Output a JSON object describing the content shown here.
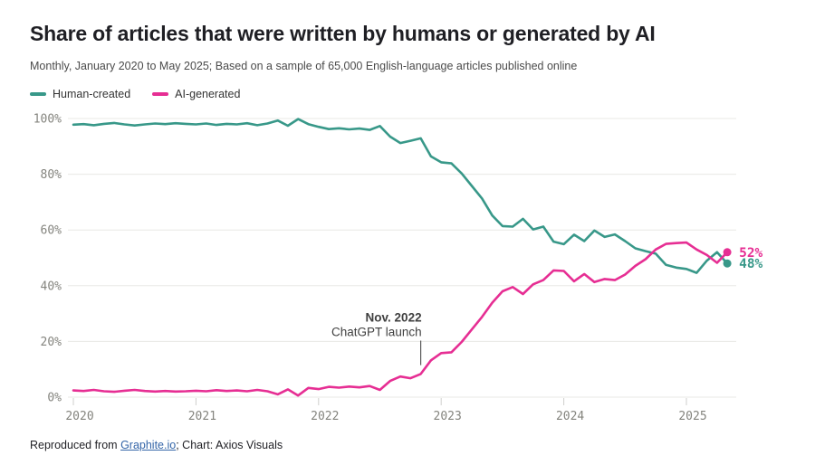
{
  "chart_data": {
    "type": "line",
    "title": "Share of articles that were written by humans or generated by AI",
    "subtitle": "Monthly, January 2020 to May 2025; Based on a sample of 65,000 English-language articles published online",
    "grid": "horizontal",
    "legend_position": "top-left",
    "ylim": [
      0,
      100
    ],
    "yticks": [
      {
        "value": 0,
        "label": "0%"
      },
      {
        "value": 20,
        "label": "20%"
      },
      {
        "value": 40,
        "label": "40%"
      },
      {
        "value": 60,
        "label": "60%"
      },
      {
        "value": 80,
        "label": "80%"
      },
      {
        "value": 100,
        "label": "100%"
      }
    ],
    "xticks": [
      {
        "index": 0,
        "label": "2020"
      },
      {
        "index": 12,
        "label": "2021"
      },
      {
        "index": 24,
        "label": "2022"
      },
      {
        "index": 36,
        "label": "2023"
      },
      {
        "index": 48,
        "label": "2024"
      },
      {
        "index": 60,
        "label": "2025"
      }
    ],
    "x": [
      "2020-01",
      "2020-02",
      "2020-03",
      "2020-04",
      "2020-05",
      "2020-06",
      "2020-07",
      "2020-08",
      "2020-09",
      "2020-10",
      "2020-11",
      "2020-12",
      "2021-01",
      "2021-02",
      "2021-03",
      "2021-04",
      "2021-05",
      "2021-06",
      "2021-07",
      "2021-08",
      "2021-09",
      "2021-10",
      "2021-11",
      "2021-12",
      "2022-01",
      "2022-02",
      "2022-03",
      "2022-04",
      "2022-05",
      "2022-06",
      "2022-07",
      "2022-08",
      "2022-09",
      "2022-10",
      "2022-11",
      "2022-12",
      "2023-01",
      "2023-02",
      "2023-03",
      "2023-04",
      "2023-05",
      "2023-06",
      "2023-07",
      "2023-08",
      "2023-09",
      "2023-10",
      "2023-11",
      "2023-12",
      "2024-01",
      "2024-02",
      "2024-03",
      "2024-04",
      "2024-05",
      "2024-06",
      "2024-07",
      "2024-08",
      "2024-09",
      "2024-10",
      "2024-11",
      "2024-12",
      "2025-01",
      "2025-02",
      "2025-03",
      "2025-04",
      "2025-05"
    ],
    "series": [
      {
        "name": "Human-created",
        "color": "#389889",
        "end_label": "48%",
        "values": [
          97.8,
          98.0,
          97.6,
          98.1,
          98.4,
          97.9,
          97.5,
          97.9,
          98.2,
          98.0,
          98.3,
          98.1,
          97.9,
          98.2,
          97.7,
          98.1,
          97.9,
          98.3,
          97.6,
          98.2,
          99.3,
          97.4,
          99.8,
          98.0,
          97.0,
          96.2,
          96.5,
          96.1,
          96.4,
          95.9,
          97.3,
          93.5,
          91.2,
          92.0,
          92.9,
          86.4,
          84.3,
          83.9,
          80.3,
          75.8,
          71.3,
          65.2,
          61.4,
          61.2,
          64.0,
          60.2,
          61.2,
          55.8,
          54.9,
          58.3,
          56.0,
          59.8,
          57.5,
          58.4,
          56.0,
          53.4,
          52.4,
          51.5,
          47.5,
          46.5,
          46.0,
          44.6,
          49.0,
          52.0,
          48.0
        ]
      },
      {
        "name": "AI-generated",
        "color": "#E62E93",
        "end_label": "52%",
        "values": [
          2.4,
          2.2,
          2.6,
          2.1,
          1.9,
          2.3,
          2.6,
          2.2,
          2.0,
          2.2,
          2.0,
          2.1,
          2.3,
          2.1,
          2.5,
          2.2,
          2.4,
          2.1,
          2.6,
          2.1,
          1.0,
          2.8,
          0.6,
          3.3,
          2.9,
          3.7,
          3.4,
          3.8,
          3.5,
          4.0,
          2.6,
          5.8,
          7.4,
          6.8,
          8.3,
          13.2,
          15.8,
          16.1,
          19.8,
          24.3,
          28.8,
          33.9,
          38.0,
          39.5,
          37.0,
          40.5,
          42.0,
          45.5,
          45.3,
          41.6,
          44.2,
          41.3,
          42.4,
          42.0,
          44.0,
          47.1,
          49.5,
          53.0,
          55.0,
          55.3,
          55.5,
          53.0,
          51.0,
          48.2,
          52.0
        ]
      }
    ],
    "annotation": {
      "title": "Nov. 2022",
      "text": "ChatGPT launch",
      "x_index": 34,
      "line_top_value": 20.3,
      "line_bottom_value": 11.5
    }
  },
  "footer": {
    "prefix": "Reproduced from ",
    "link_text": "Graphite.io",
    "suffix": "; Chart: Axios Visuals",
    "link_color": "#3465A8"
  }
}
